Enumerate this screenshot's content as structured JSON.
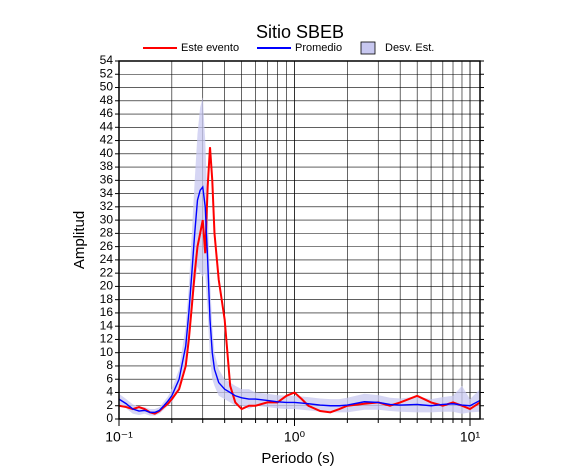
{
  "chart_data": {
    "type": "line",
    "title": "Sitio SBEB",
    "xlabel": "Periodo (s)",
    "ylabel": "Amplitud",
    "log_x": true,
    "grid": true,
    "xlim": [
      0.1,
      11.4
    ],
    "ylim": [
      0,
      54
    ],
    "xticks": [
      {
        "value": 0.1,
        "label": "10⁻¹"
      },
      {
        "value": 1,
        "label": "10⁰"
      },
      {
        "value": 10,
        "label": "10¹"
      }
    ],
    "xminor": [
      0.2,
      0.3,
      0.4,
      0.5,
      0.6,
      0.7,
      0.8,
      0.9,
      2,
      3,
      4,
      5,
      6,
      7,
      8,
      9
    ],
    "yticks": [
      0,
      2,
      4,
      6,
      8,
      10,
      12,
      14,
      16,
      18,
      20,
      22,
      24,
      26,
      28,
      30,
      32,
      34,
      36,
      38,
      40,
      42,
      44,
      46,
      48,
      50,
      52,
      54
    ],
    "x": [
      0.1,
      0.11,
      0.12,
      0.13,
      0.14,
      0.15,
      0.16,
      0.17,
      0.18,
      0.19,
      0.2,
      0.22,
      0.24,
      0.25,
      0.26,
      0.27,
      0.28,
      0.29,
      0.3,
      0.31,
      0.32,
      0.33,
      0.34,
      0.35,
      0.37,
      0.4,
      0.43,
      0.46,
      0.5,
      0.55,
      0.6,
      0.7,
      0.8,
      0.9,
      1.0,
      1.1,
      1.2,
      1.4,
      1.6,
      1.8,
      2,
      2.5,
      3,
      3.5,
      4,
      5,
      6,
      7,
      8,
      9,
      10,
      11.4
    ],
    "band": {
      "name": "Desv. Est.",
      "color": "#c8c8f0",
      "upper": [
        3.8,
        3,
        2.2,
        1.8,
        1.8,
        1.5,
        1.5,
        1.8,
        2.6,
        3.4,
        4.5,
        7.5,
        14,
        20,
        28,
        36,
        43,
        47,
        48.5,
        42,
        32,
        21,
        14,
        10,
        7.5,
        6,
        5.5,
        5,
        4.5,
        4.5,
        4,
        3.8,
        3.6,
        3.5,
        3.5,
        3.4,
        3.3,
        3.1,
        3,
        3,
        3.2,
        3.8,
        3.6,
        3.2,
        3.1,
        3.4,
        3,
        3.3,
        3.5,
        5,
        3,
        4.5
      ],
      "lower": [
        2.2,
        1.6,
        0.8,
        0.6,
        0.8,
        0.5,
        0.5,
        0.8,
        1.4,
        2,
        2.5,
        4.5,
        8,
        12,
        16,
        20,
        23,
        22,
        21.5,
        22,
        16,
        9,
        6,
        5,
        3.5,
        3,
        2.5,
        2,
        2,
        1.5,
        2,
        1.8,
        1.6,
        1.5,
        1.5,
        1.4,
        1.3,
        1.1,
        1,
        1,
        1,
        1.4,
        1.4,
        1.2,
        1.1,
        1,
        1,
        1.1,
        1.1,
        0.8,
        1,
        1.1
      ]
    },
    "series": [
      {
        "name": "Este evento",
        "color": "#ff0000",
        "values": [
          2,
          1.8,
          1.5,
          1.8,
          1.5,
          1,
          0.8,
          1.2,
          1.8,
          2.3,
          3,
          4.5,
          8,
          12,
          17,
          22,
          26,
          28,
          30,
          25,
          35,
          41,
          36,
          28,
          21,
          15,
          5,
          2.5,
          1.5,
          2,
          2,
          2.5,
          2.5,
          3.5,
          4,
          3,
          2,
          1.2,
          1,
          1.5,
          2,
          2.3,
          2.5,
          2,
          2.5,
          3.5,
          2.5,
          2,
          2.5,
          2,
          1.5,
          2.5
        ]
      },
      {
        "name": "Promedio",
        "color": "#0000ff",
        "values": [
          3,
          2.3,
          1.5,
          1.2,
          1.3,
          1,
          1,
          1.3,
          2,
          2.7,
          3.5,
          6,
          11,
          16,
          22,
          28,
          33,
          34.5,
          35,
          32,
          24,
          15,
          10,
          7.5,
          5.5,
          4.5,
          4,
          3.5,
          3.2,
          3,
          3,
          2.8,
          2.6,
          2.5,
          2.5,
          2.4,
          2.3,
          2.1,
          2,
          2,
          2.1,
          2.6,
          2.5,
          2.2,
          2.1,
          2.2,
          2,
          2.2,
          2.3,
          2.1,
          2,
          2.8
        ]
      }
    ]
  }
}
